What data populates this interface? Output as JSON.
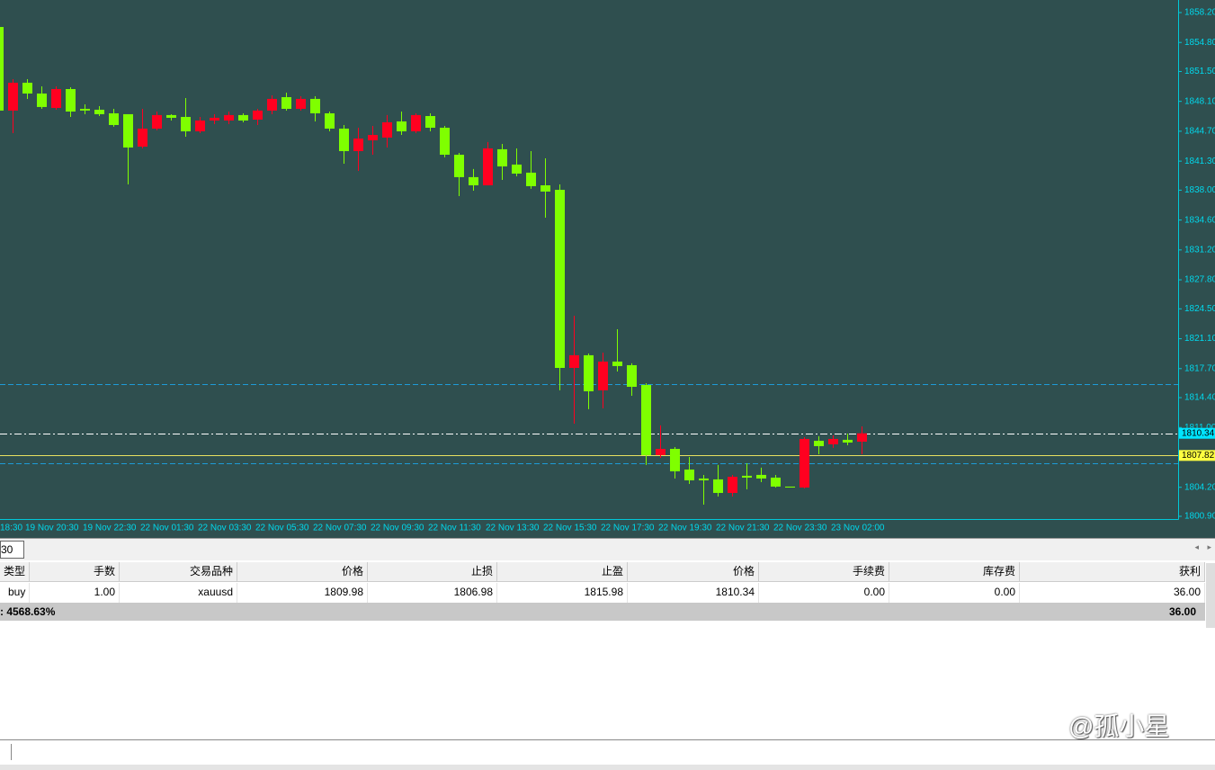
{
  "chart_data": {
    "type": "candlestick",
    "categories": [
      "18:30",
      null,
      "19 Nov 20:30",
      null,
      null,
      null,
      "19 Nov 22:30",
      null,
      null,
      null,
      "22 Nov 01:30",
      null,
      null,
      null,
      "22 Nov 03:30",
      null,
      null,
      null,
      "22 Nov 05:30",
      null,
      null,
      null,
      "22 Nov 07:30",
      null,
      null,
      null,
      "22 Nov 09:30",
      null,
      null,
      null,
      "22 Nov 11:30",
      null,
      null,
      null,
      "22 Nov 13:30",
      null,
      null,
      null,
      "22 Nov 15:30",
      null,
      null,
      null,
      "22 Nov 17:30",
      null,
      null,
      null,
      "22 Nov 19:30",
      null,
      null,
      null,
      "22 Nov 21:30",
      null,
      null,
      null,
      "22 Nov 23:30",
      null,
      null,
      null,
      "23 Nov 02:00",
      null,
      null
    ],
    "open": [
      1856.56,
      1847.05,
      1850.22,
      1848.99,
      1847.35,
      1849.5,
      1847.25,
      1847.15,
      1846.74,
      1846.64,
      1842.95,
      1845.0,
      1846.54,
      1846.33,
      1844.69,
      1845.92,
      1845.92,
      1846.54,
      1846.02,
      1847.05,
      1848.58,
      1847.25,
      1848.38,
      1846.74,
      1845.0,
      1842.44,
      1843.67,
      1843.98,
      1845.82,
      1844.69,
      1846.43,
      1845.1,
      1842.03,
      1839.48,
      1838.55,
      1842.65,
      1840.91,
      1839.99,
      1838.55,
      1838.04,
      1817.78,
      1819.22,
      1815.23,
      1818.5,
      1818.09,
      1815.84,
      1807.86,
      1808.57,
      1806.22,
      1805.2,
      1805.1,
      1803.56,
      1805.51,
      1805.61,
      1805.3,
      1804.28,
      1804.17,
      1809.49,
      1809.09,
      1809.6,
      1809.39
    ],
    "high": [
      1856.56,
      1850.63,
      1850.63,
      1849.81,
      1849.81,
      1849.71,
      1847.76,
      1847.56,
      1847.25,
      1846.64,
      1847.25,
      1846.94,
      1846.64,
      1848.48,
      1846.33,
      1846.64,
      1846.94,
      1846.74,
      1847.25,
      1848.79,
      1849.09,
      1848.68,
      1848.68,
      1846.94,
      1845.41,
      1845.1,
      1845.31,
      1846.54,
      1846.94,
      1846.74,
      1846.74,
      1845.31,
      1842.24,
      1840.4,
      1843.47,
      1843.26,
      1842.75,
      1842.44,
      1841.62,
      1838.66,
      1823.72,
      1819.42,
      1819.52,
      1822.18,
      1818.3,
      1816.04,
      1811.24,
      1808.78,
      1807.65,
      1805.61,
      1806.74,
      1805.61,
      1806.94,
      1806.43,
      1805.61,
      1804.28,
      1809.9,
      1810.01,
      1810.11,
      1810.31,
      1811.13
    ],
    "low": [
      1847.05,
      1844.49,
      1848.38,
      1847.25,
      1847.15,
      1846.33,
      1846.64,
      1846.43,
      1845.21,
      1838.66,
      1842.75,
      1844.8,
      1845.92,
      1844.08,
      1844.49,
      1845.51,
      1845.51,
      1845.72,
      1845.41,
      1846.64,
      1847.05,
      1847.05,
      1845.82,
      1844.69,
      1841.01,
      1840.19,
      1842.03,
      1842.85,
      1844.28,
      1844.49,
      1844.69,
      1841.73,
      1837.33,
      1837.94,
      1838.55,
      1839.17,
      1839.58,
      1838.15,
      1834.87,
      1815.23,
      1811.44,
      1813.08,
      1813.18,
      1817.37,
      1814.61,
      1806.74,
      1807.55,
      1805.2,
      1804.58,
      1802.23,
      1803.15,
      1803.15,
      1803.97,
      1804.79,
      1804.17,
      1804.17,
      1804.07,
      1807.96,
      1808.68,
      1808.98,
      1807.96
    ],
    "close": [
      1847.05,
      1850.22,
      1848.99,
      1847.46,
      1849.5,
      1846.94,
      1847.05,
      1846.64,
      1845.41,
      1842.85,
      1845.0,
      1846.54,
      1846.23,
      1844.69,
      1845.92,
      1846.23,
      1846.54,
      1845.92,
      1847.05,
      1848.38,
      1847.25,
      1848.38,
      1846.74,
      1845.0,
      1842.44,
      1843.87,
      1844.28,
      1845.72,
      1844.69,
      1846.54,
      1845.1,
      1842.03,
      1839.48,
      1838.55,
      1842.75,
      1840.7,
      1839.88,
      1838.45,
      1837.84,
      1817.78,
      1819.22,
      1815.12,
      1818.5,
      1817.99,
      1815.63,
      1807.86,
      1808.57,
      1806.02,
      1804.99,
      1804.99,
      1803.56,
      1805.4,
      1805.3,
      1805.2,
      1804.28,
      1804.17,
      1809.7,
      1808.88,
      1809.7,
      1809.29,
      1810.34
    ],
    "up_color": "#ff0020",
    "down_color": "#7fff00",
    "ylim": [
      1800.59,
      1859.63
    ],
    "yticks": [
      {
        "value": 1858.2,
        "label": "1858.20"
      },
      {
        "value": 1854.8,
        "label": "1854.80"
      },
      {
        "value": 1851.5,
        "label": "1851.50"
      },
      {
        "value": 1848.1,
        "label": "1848.10"
      },
      {
        "value": 1844.7,
        "label": "1844.70"
      },
      {
        "value": 1841.3,
        "label": "1841.30"
      },
      {
        "value": 1838.0,
        "label": "1838.00"
      },
      {
        "value": 1834.6,
        "label": "1834.60"
      },
      {
        "value": 1831.2,
        "label": "1831.20"
      },
      {
        "value": 1827.8,
        "label": "1827.80"
      },
      {
        "value": 1824.5,
        "label": "1824.50"
      },
      {
        "value": 1821.1,
        "label": "1821.10"
      },
      {
        "value": 1817.7,
        "label": "1817.70"
      },
      {
        "value": 1814.4,
        "label": "1814.40"
      },
      {
        "value": 1811.0,
        "label": "1811.00"
      },
      {
        "value": 1804.2,
        "label": "1804.20"
      },
      {
        "value": 1800.9,
        "label": "1800.90"
      }
    ],
    "lines": [
      {
        "value": 1815.98,
        "color": "#1e9bd7",
        "style": "dashed"
      },
      {
        "value": 1806.98,
        "color": "#1e9bd7",
        "style": "dashed"
      },
      {
        "value": 1810.34,
        "color": "#ffffff",
        "style": "dashdot"
      },
      {
        "value": 1807.82,
        "color": "#e8e060",
        "style": "solid"
      }
    ],
    "price_labels": [
      {
        "value": 1810.34,
        "color": "#00e5ff"
      },
      {
        "value": 1807.82,
        "color": "#ffff40"
      }
    ]
  },
  "tab": "30",
  "table": {
    "headers": [
      "类型",
      "手数",
      "交易品种",
      "价格",
      "止损",
      "止盈",
      "价格",
      "手续费",
      "库存费",
      "获利"
    ],
    "rows": [
      [
        "buy",
        "1.00",
        "xauusd",
        "1809.98",
        "1806.98",
        "1815.98",
        "1810.34",
        "0.00",
        "0.00",
        "36.00"
      ]
    ],
    "summary": {
      "label": ": 4568.63%",
      "total": "36.00"
    }
  },
  "watermark": "@孤小星"
}
